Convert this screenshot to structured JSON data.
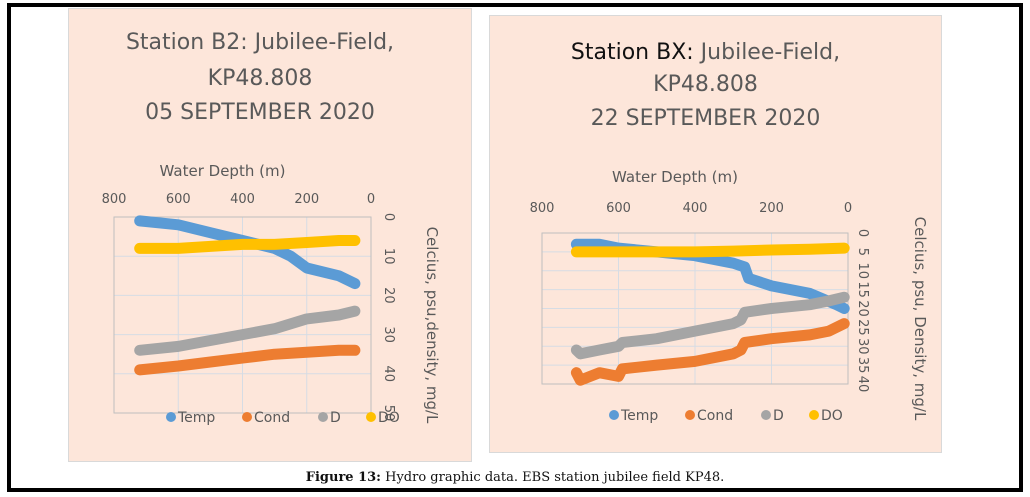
{
  "caption": {
    "label": "Figure 13:",
    "text": " Hydro graphic data. EBS station jubilee field KP48."
  },
  "colors": {
    "panel_bg": "#fde6da",
    "grid": "#d6dce4",
    "Temp": "#5b9bd5",
    "Cond": "#ed7d31",
    "D": "#a5a5a5",
    "DO": "#ffc000",
    "text": "#595959"
  },
  "chart_data": [
    {
      "type": "line",
      "title_lines": [
        "Station B2: Jubilee-Field,",
        "KP48.808",
        "05 SEPTEMBER 2020"
      ],
      "xlabel": "Water Depth (m)",
      "ylabel": "Celcius, psu,density, mg/L",
      "x_axis_position": "top",
      "x_reversed": true,
      "xlim": [
        0,
        800
      ],
      "x_ticks": [
        800,
        600,
        400,
        200,
        0
      ],
      "y_reversed": true,
      "ylim": [
        0,
        50
      ],
      "y_ticks": [
        0,
        10,
        20,
        30,
        40,
        50
      ],
      "y_axis_position": "right",
      "grid": true,
      "legend_position": "bottom",
      "legend": [
        "Temp",
        "Cond",
        "D",
        "DO"
      ],
      "series": [
        {
          "name": "Temp",
          "x": [
            720,
            600,
            500,
            400,
            300,
            250,
            200,
            100,
            50
          ],
          "y": [
            1,
            2,
            4,
            6,
            8,
            10,
            13,
            15,
            17
          ]
        },
        {
          "name": "Cond",
          "x": [
            720,
            600,
            500,
            400,
            300,
            200,
            100,
            50
          ],
          "y": [
            39,
            38,
            37,
            36,
            35,
            34.5,
            34,
            34
          ]
        },
        {
          "name": "D",
          "x": [
            720,
            600,
            500,
            400,
            300,
            200,
            100,
            50
          ],
          "y": [
            34,
            33,
            31.5,
            30,
            28.5,
            26,
            25,
            24
          ]
        },
        {
          "name": "DO",
          "x": [
            720,
            600,
            500,
            400,
            300,
            200,
            100,
            50
          ],
          "y": [
            8,
            8,
            7.5,
            7,
            7,
            6.5,
            6,
            6
          ]
        }
      ]
    },
    {
      "type": "line",
      "title_bold": "Station BX:",
      "title_lines": [
        " Jubilee-Field,",
        "KP48.808",
        "22 SEPTEMBER 2020"
      ],
      "xlabel": "Water Depth (m)",
      "ylabel": "Celcius, psu, Density, mg/L",
      "x_axis_position": "top",
      "x_reversed": true,
      "xlim": [
        0,
        800
      ],
      "x_ticks": [
        800,
        600,
        400,
        200,
        0
      ],
      "y_reversed": true,
      "ylim": [
        0,
        40
      ],
      "y_ticks": [
        0,
        5,
        10,
        15,
        20,
        25,
        30,
        35,
        40
      ],
      "y_axis_position": "right",
      "grid": true,
      "legend_position": "bottom",
      "legend": [
        "Temp",
        "Cond",
        "D",
        "DO"
      ],
      "series": [
        {
          "name": "Temp",
          "x": [
            710,
            650,
            600,
            500,
            400,
            300,
            270,
            260,
            200,
            100,
            30,
            10
          ],
          "y": [
            3,
            3,
            4,
            5,
            6,
            8,
            9,
            12,
            14,
            16,
            19,
            20
          ]
        },
        {
          "name": "Cond",
          "x": [
            710,
            700,
            650,
            600,
            590,
            500,
            400,
            300,
            280,
            270,
            200,
            100,
            50,
            10
          ],
          "y": [
            37,
            39,
            37,
            38,
            36,
            35,
            34,
            32,
            31,
            29,
            28,
            27,
            26,
            24
          ]
        },
        {
          "name": "D",
          "x": [
            710,
            700,
            650,
            600,
            590,
            500,
            400,
            300,
            280,
            270,
            200,
            100,
            50,
            10
          ],
          "y": [
            31,
            32,
            31,
            30,
            29,
            28,
            26,
            24,
            23,
            21,
            20,
            19,
            18,
            17
          ]
        },
        {
          "name": "DO",
          "x": [
            710,
            600,
            500,
            400,
            300,
            200,
            100,
            10
          ],
          "y": [
            5,
            5,
            5,
            5,
            4.8,
            4.5,
            4.3,
            4
          ]
        }
      ]
    }
  ]
}
